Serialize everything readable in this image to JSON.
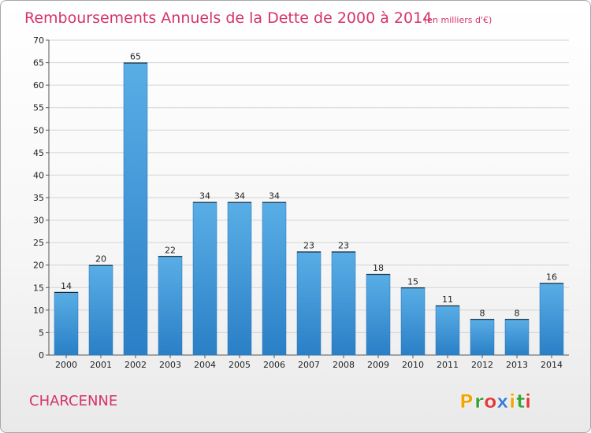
{
  "header": {
    "title": "Remboursements Annuels de la Dette de 2000 à 2014",
    "subtitle": "(en milliers d'€)"
  },
  "commune": "CHARCENNE",
  "brand": {
    "letters": [
      "P",
      "r",
      "o",
      "x",
      "i",
      "t",
      "i"
    ],
    "colors": [
      "#f0a500",
      "#3aa335",
      "#e23b3b",
      "#3b7fd1",
      "#f0a500",
      "#3aa335",
      "#e23b3b"
    ]
  },
  "colors": {
    "accent": "#d5336d",
    "bar_top": "#5aaee6",
    "bar_bottom": "#2a7fc6"
  },
  "chart_data": {
    "type": "bar",
    "categories": [
      "2000",
      "2001",
      "2002",
      "2003",
      "2004",
      "2005",
      "2006",
      "2007",
      "2008",
      "2009",
      "2010",
      "2011",
      "2012",
      "2013",
      "2014"
    ],
    "values": [
      14,
      20,
      65,
      22,
      34,
      34,
      34,
      23,
      23,
      18,
      15,
      11,
      8,
      8,
      16
    ],
    "ylim": [
      0,
      70
    ],
    "yticks": [
      0,
      5,
      10,
      15,
      20,
      25,
      30,
      35,
      40,
      45,
      50,
      55,
      60,
      65,
      70
    ],
    "grid": true
  }
}
